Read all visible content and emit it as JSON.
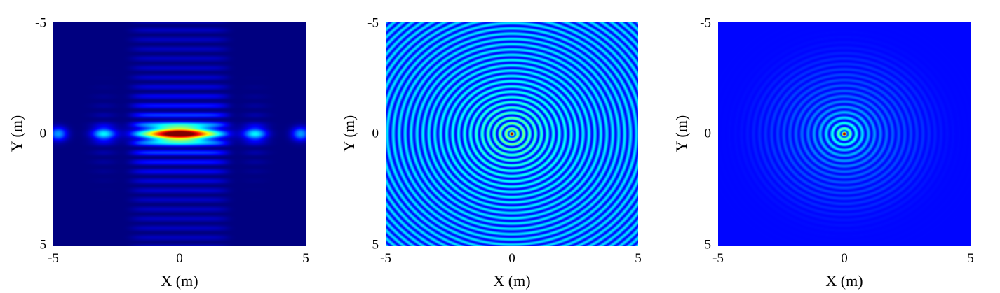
{
  "chart_data": [
    {
      "type": "heatmap",
      "title": "",
      "xlabel": "X (m)",
      "ylabel": "Y (m)",
      "xlim": [
        -5,
        5
      ],
      "ylim": [
        -5,
        5
      ],
      "xticks": [
        "-5",
        "0",
        "5"
      ],
      "yticks": [
        "-5",
        "0",
        "5"
      ],
      "y_axis_reversed": true,
      "colormap": "jet",
      "pattern": "elongated central lobe along x with side lobes at x≈±3 and x≈±4.8, vertical fringe stripes within |x|<2",
      "peak": {
        "x": 0,
        "y": 0
      }
    },
    {
      "type": "heatmap",
      "title": "",
      "xlabel": "X (m)",
      "ylabel": "Y (m)",
      "xlim": [
        -5,
        5
      ],
      "ylim": [
        -5,
        5
      ],
      "xticks": [
        "-5",
        "0",
        "5"
      ],
      "yticks": [
        "-5",
        "0",
        "5"
      ],
      "y_axis_reversed": true,
      "colormap": "jet",
      "pattern": "concentric rings extending to edges",
      "peak": {
        "x": 0,
        "y": 0
      }
    },
    {
      "type": "heatmap",
      "title": "",
      "xlabel": "X (m)",
      "ylabel": "Y (m)",
      "xlim": [
        -5,
        5
      ],
      "ylim": [
        -5,
        5
      ],
      "xticks": [
        "-5",
        "0",
        "5"
      ],
      "yticks": [
        "-5",
        "0",
        "5"
      ],
      "y_axis_reversed": true,
      "colormap": "jet",
      "pattern": "concentric rings decaying with radius, fading by r≈3.5",
      "peak": {
        "x": 0,
        "y": 0
      }
    }
  ]
}
